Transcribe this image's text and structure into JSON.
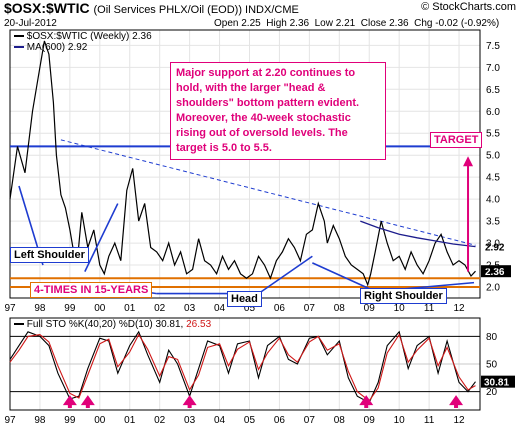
{
  "header": {
    "symbol": "$OSX:$WTIC",
    "description": "(Oil Services PHLX/Oil (EOD)) INDX/CME",
    "watermark": "© StockCharts.com",
    "date": "20-Jul-2012",
    "ohlc": "Open 2.25  High 2.36  Low 2.21  Close 2.36  Chg -0.02 (-0.92%)"
  },
  "colors": {
    "price": "#000000",
    "ma": "#1c1c8c",
    "trend": "#1e3cd0",
    "accent": "#e0007a",
    "support": "#e07000",
    "stoch_k": "#000000",
    "stoch_d": "#d01818"
  },
  "chart_data": [
    {
      "type": "line",
      "title": "$OSX:$WTIC (Weekly) 2.36",
      "legend": [
        "$OSX:$WTIC (Weekly) 2.36",
        "MA(600) 2.92"
      ],
      "legend_placement": "top-left",
      "x_ticks": [
        "97",
        "98",
        "99",
        "00",
        "01",
        "02",
        "03",
        "04",
        "05",
        "06",
        "07",
        "08",
        "09",
        "10",
        "11",
        "12"
      ],
      "y_ticks": [
        "2.0",
        "2.5",
        "3.0",
        "3.5",
        "4.0",
        "4.5",
        "5.0",
        "5.5",
        "6.0",
        "6.5",
        "7.0",
        "7.5"
      ],
      "ylim": [
        1.75,
        7.85
      ],
      "grid": true,
      "series": [
        {
          "name": "$OSX:$WTIC (Weekly) 2.36",
          "x": [
            1997.0,
            1997.25,
            1997.5,
            1997.75,
            1998.0,
            1998.15,
            1998.3,
            1998.45,
            1998.55,
            1998.7,
            1998.85,
            1999.0,
            1999.1,
            1999.25,
            1999.4,
            1999.6,
            1999.8,
            2000.0,
            2000.15,
            2000.3,
            2000.5,
            2000.7,
            2000.9,
            2001.1,
            2001.3,
            2001.5,
            2001.7,
            2001.9,
            2002.1,
            2002.3,
            2002.5,
            2002.7,
            2002.9,
            2003.1,
            2003.3,
            2003.5,
            2003.7,
            2003.9,
            2004.1,
            2004.3,
            2004.5,
            2004.7,
            2004.9,
            2005.1,
            2005.3,
            2005.5,
            2005.7,
            2005.9,
            2006.1,
            2006.3,
            2006.5,
            2006.7,
            2006.9,
            2007.1,
            2007.3,
            2007.5,
            2007.6,
            2007.8,
            2008.0,
            2008.2,
            2008.4,
            2008.6,
            2008.8,
            2008.95,
            2009.05,
            2009.2,
            2009.4,
            2009.6,
            2009.8,
            2010.0,
            2010.2,
            2010.4,
            2010.6,
            2010.8,
            2011.0,
            2011.2,
            2011.4,
            2011.6,
            2011.8,
            2012.0,
            2012.2,
            2012.4,
            2012.55
          ],
          "values": [
            4.0,
            5.2,
            4.6,
            6.0,
            7.0,
            7.6,
            7.3,
            6.2,
            5.0,
            4.1,
            3.8,
            3.3,
            2.9,
            2.6,
            3.7,
            2.9,
            3.3,
            2.5,
            2.3,
            2.7,
            3.0,
            2.6,
            4.2,
            4.7,
            3.5,
            3.9,
            2.9,
            2.8,
            2.6,
            3.0,
            2.5,
            2.8,
            2.3,
            2.4,
            3.1,
            2.6,
            2.5,
            2.3,
            2.7,
            2.4,
            2.6,
            2.3,
            2.2,
            2.3,
            2.7,
            2.5,
            2.2,
            2.6,
            2.8,
            3.1,
            2.9,
            2.6,
            3.2,
            3.3,
            3.9,
            3.5,
            3.0,
            3.4,
            3.1,
            2.7,
            2.5,
            2.4,
            2.3,
            2.05,
            2.3,
            2.8,
            3.5,
            3.0,
            2.6,
            2.7,
            2.4,
            2.8,
            2.5,
            2.3,
            2.6,
            3.0,
            3.2,
            2.8,
            2.5,
            2.6,
            2.5,
            2.25,
            2.36
          ]
        },
        {
          "name": "MA(600) 2.92",
          "x": [
            2008.7,
            2009.3,
            2010.0,
            2010.6,
            2011.2,
            2011.8,
            2012.55
          ],
          "values": [
            3.5,
            3.35,
            3.2,
            3.12,
            3.05,
            2.98,
            2.92
          ]
        }
      ],
      "last_values": [
        "2.92",
        "2.36"
      ],
      "reference_lines": [
        {
          "kind": "horizontal",
          "value": 5.2,
          "color": "blue"
        },
        {
          "kind": "horizontal",
          "value": 2.2,
          "color": "orange"
        },
        {
          "kind": "horizontal",
          "value": 2.0,
          "color": "orange"
        },
        {
          "kind": "trendline",
          "x": [
            1998.7,
            2012.55
          ],
          "values": [
            5.35,
            2.95
          ],
          "style": "dashed"
        }
      ],
      "annotations": {
        "note": "Major support at 2.20 continues to hold, with the larger \"head & shoulders\" bottom pattern evident. Moreover, the 40-week stochastic rising out of oversold levels. The target is 5.0 to 5.5.",
        "target": "TARGET",
        "left_shoulder": "Left Shoulder",
        "four_times": "4-TIMES IN 15-YEARS",
        "head": "Head",
        "right_shoulder": "Right Shoulder"
      }
    },
    {
      "type": "line",
      "title": "Full STO %K(40,20) %D(10) 30.81, 26.53",
      "legend_parts": {
        "base": "Full STO %K(40,20) %D(10)",
        "k_value": "30.81,",
        "d_value": "26.53"
      },
      "y_ticks": [
        "20",
        "50",
        "80"
      ],
      "ylim": [
        0,
        100
      ],
      "last_value_label": "30.81",
      "series": [
        {
          "name": "%K",
          "x": [
            1997.0,
            1997.3,
            1997.6,
            1998.0,
            1998.3,
            1998.6,
            1999.0,
            1999.3,
            1999.6,
            2000.0,
            2000.3,
            2000.6,
            2001.0,
            2001.3,
            2001.6,
            2002.0,
            2002.3,
            2002.6,
            2003.0,
            2003.3,
            2003.6,
            2004.0,
            2004.3,
            2004.6,
            2005.0,
            2005.3,
            2005.6,
            2006.0,
            2006.3,
            2006.6,
            2007.0,
            2007.3,
            2007.6,
            2008.0,
            2008.3,
            2008.6,
            2009.0,
            2009.3,
            2009.6,
            2010.0,
            2010.3,
            2010.6,
            2011.0,
            2011.3,
            2011.6,
            2012.0,
            2012.3,
            2012.55
          ],
          "values": [
            55,
            70,
            85,
            80,
            70,
            40,
            12,
            15,
            45,
            78,
            75,
            40,
            70,
            85,
            60,
            30,
            65,
            50,
            15,
            45,
            75,
            70,
            40,
            72,
            75,
            35,
            70,
            80,
            55,
            50,
            78,
            80,
            60,
            75,
            35,
            15,
            8,
            30,
            70,
            85,
            45,
            70,
            80,
            40,
            75,
            30,
            20,
            30.81
          ]
        },
        {
          "name": "%D",
          "x": [
            1997.0,
            1997.3,
            1997.6,
            1998.0,
            1998.3,
            1998.6,
            1999.0,
            1999.3,
            1999.6,
            2000.0,
            2000.3,
            2000.6,
            2001.0,
            2001.3,
            2001.6,
            2002.0,
            2002.3,
            2002.6,
            2003.0,
            2003.3,
            2003.6,
            2004.0,
            2004.3,
            2004.6,
            2005.0,
            2005.3,
            2005.6,
            2006.0,
            2006.3,
            2006.6,
            2007.0,
            2007.3,
            2007.6,
            2008.0,
            2008.3,
            2008.6,
            2009.0,
            2009.3,
            2009.6,
            2010.0,
            2010.3,
            2010.6,
            2011.0,
            2011.3,
            2011.6,
            2012.0,
            2012.3,
            2012.55
          ],
          "values": [
            52,
            65,
            80,
            82,
            74,
            48,
            18,
            13,
            38,
            72,
            77,
            47,
            63,
            82,
            66,
            37,
            58,
            55,
            22,
            38,
            68,
            72,
            48,
            66,
            74,
            44,
            62,
            78,
            60,
            52,
            74,
            80,
            65,
            72,
            42,
            20,
            10,
            24,
            62,
            82,
            52,
            65,
            78,
            48,
            68,
            36,
            22,
            26.53
          ]
        }
      ],
      "arrow_markers_x": [
        1999.0,
        1999.6,
        2003.0,
        2008.9,
        2011.9
      ]
    }
  ]
}
